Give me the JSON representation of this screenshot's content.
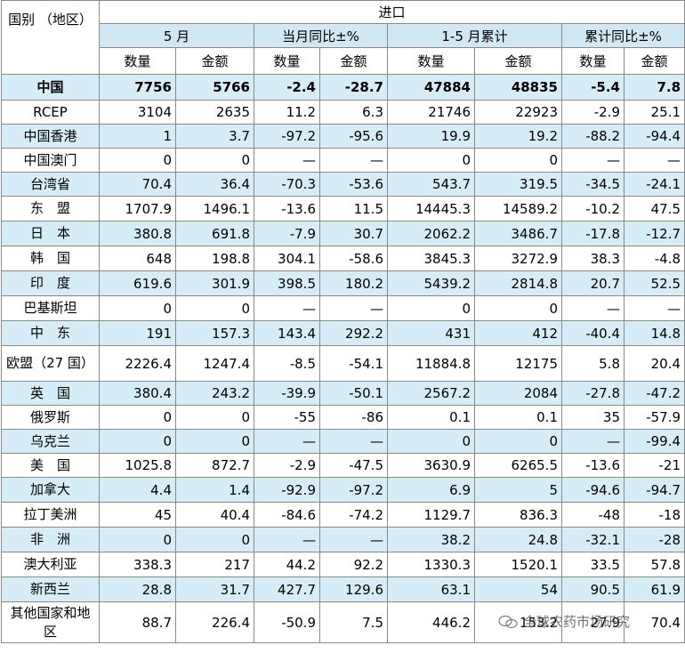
{
  "header": {
    "corner": "国别 （地区）",
    "group": "进口",
    "sub": [
      "5 月",
      "当月同比±%",
      "1-5 月累计",
      "累计同比±%"
    ],
    "cols": [
      "数量",
      "金额",
      "数量",
      "金额",
      "数量",
      "金额",
      "数量",
      "金额"
    ]
  },
  "rows": [
    {
      "name": "中国",
      "v": [
        "7756",
        "5766",
        "-2.4",
        "-28.7",
        "47884",
        "48835",
        "-5.4",
        "7.8"
      ]
    },
    {
      "name": "RCEP",
      "v": [
        "3104",
        "2635",
        "11.2",
        "6.3",
        "21746",
        "22923",
        "-2.9",
        "25.1"
      ]
    },
    {
      "name": "中国香港",
      "v": [
        "1",
        "3.7",
        "-97.2",
        "-95.6",
        "19.9",
        "19.2",
        "-88.2",
        "-94.4"
      ]
    },
    {
      "name": "中国澳门",
      "v": [
        "0",
        "0",
        "—",
        "—",
        "0",
        "0",
        "—",
        "—"
      ]
    },
    {
      "name": "台湾省",
      "v": [
        "70.4",
        "36.4",
        "-70.3",
        "-53.6",
        "543.7",
        "319.5",
        "-34.5",
        "-24.1"
      ]
    },
    {
      "name": "东　盟",
      "v": [
        "1707.9",
        "1496.1",
        "-13.6",
        "11.5",
        "14445.3",
        "14589.2",
        "-10.2",
        "47.5"
      ]
    },
    {
      "name": "日　本",
      "v": [
        "380.8",
        "691.8",
        "-7.9",
        "30.7",
        "2062.2",
        "3486.7",
        "-17.8",
        "-12.7"
      ]
    },
    {
      "name": "韩　国",
      "v": [
        "648",
        "198.8",
        "304.1",
        "-58.6",
        "3845.3",
        "3272.9",
        "38.3",
        "-4.8"
      ]
    },
    {
      "name": "印　度",
      "v": [
        "619.6",
        "301.9",
        "398.5",
        "180.2",
        "5439.2",
        "2814.8",
        "20.7",
        "52.5"
      ]
    },
    {
      "name": "巴基斯坦",
      "v": [
        "0",
        "0",
        "—",
        "—",
        "0",
        "0",
        "—",
        "—"
      ]
    },
    {
      "name": "中　东",
      "v": [
        "191",
        "157.3",
        "143.4",
        "292.2",
        "431",
        "412",
        "-40.4",
        "14.8"
      ]
    },
    {
      "name": "欧盟（27 国）",
      "v": [
        "2226.4",
        "1247.4",
        "-8.5",
        "-54.1",
        "11884.8",
        "12175",
        "5.8",
        "20.4"
      ]
    },
    {
      "name": "英　国",
      "v": [
        "380.4",
        "243.2",
        "-39.9",
        "-50.1",
        "2567.2",
        "2084",
        "-27.8",
        "-47.2"
      ]
    },
    {
      "name": "俄罗斯",
      "v": [
        "0",
        "0",
        "-55",
        "-86",
        "0.1",
        "0.1",
        "35",
        "-57.9"
      ]
    },
    {
      "name": "乌克兰",
      "v": [
        "0",
        "0",
        "—",
        "—",
        "0",
        "0",
        "—",
        "-99.4"
      ]
    },
    {
      "name": "美　国",
      "v": [
        "1025.8",
        "872.7",
        "-2.9",
        "-47.5",
        "3630.9",
        "6265.5",
        "-13.6",
        "-21"
      ]
    },
    {
      "name": "加拿大",
      "v": [
        "4.4",
        "1.4",
        "-92.9",
        "-97.2",
        "6.9",
        "5",
        "-94.6",
        "-94.7"
      ]
    },
    {
      "name": "拉丁美洲",
      "v": [
        "45",
        "40.4",
        "-84.6",
        "-74.2",
        "1129.7",
        "836.3",
        "-48",
        "-18"
      ]
    },
    {
      "name": "非　洲",
      "v": [
        "0",
        "0",
        "—",
        "—",
        "38.2",
        "24.8",
        "-32.1",
        "-28"
      ]
    },
    {
      "name": "澳大利亚",
      "v": [
        "338.3",
        "217",
        "44.2",
        "92.2",
        "1330.3",
        "1520.1",
        "33.5",
        "57.8"
      ]
    },
    {
      "name": "新西兰",
      "v": [
        "28.8",
        "31.7",
        "427.7",
        "129.6",
        "63.1",
        "54",
        "90.5",
        "61.9"
      ]
    },
    {
      "name": "其他国家和地区",
      "v": [
        "88.7",
        "226.4",
        "-50.9",
        "7.5",
        "446.2",
        "153.2",
        "27.9",
        "70.4"
      ]
    }
  ],
  "watermark": "全球农药市场研究"
}
